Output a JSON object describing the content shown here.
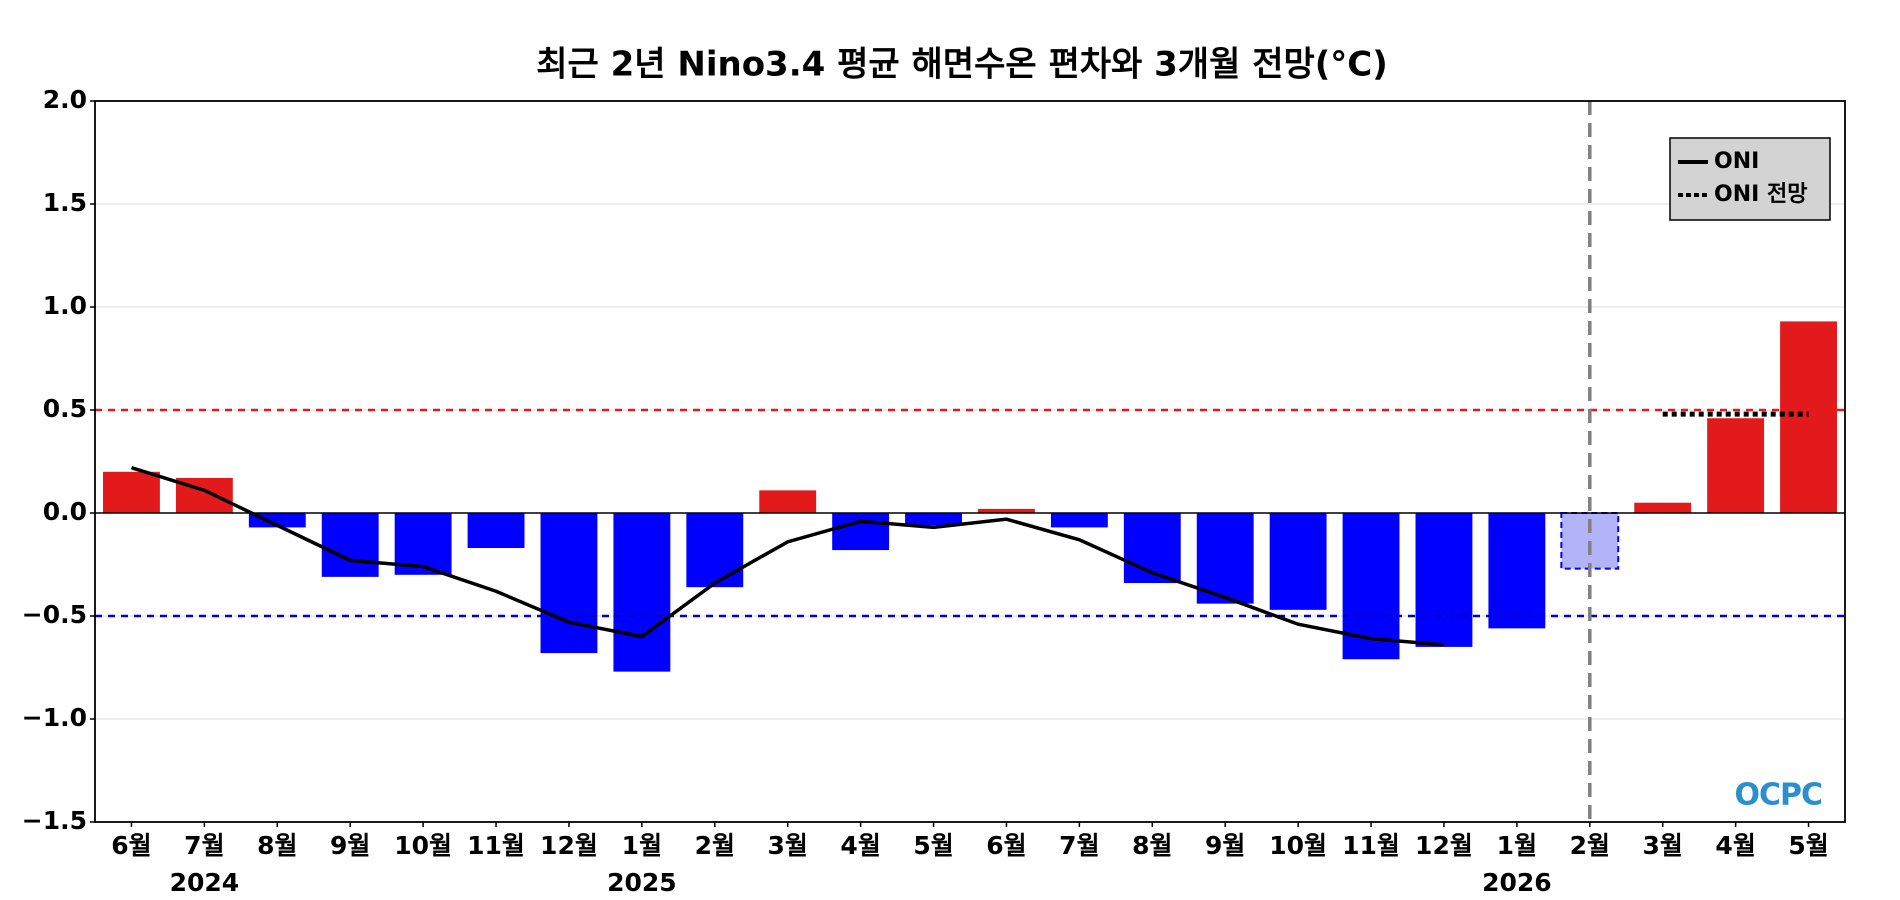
{
  "chart_data": {
    "type": "bar",
    "title": "최근 2년 Nino3.4 평균 해면수온 편차와 3개월 전망(°C)",
    "categories": [
      "6월",
      "7월",
      "8월",
      "9월",
      "10월",
      "11월",
      "12월",
      "1월",
      "2월",
      "3월",
      "4월",
      "5월",
      "6월",
      "7월",
      "8월",
      "9월",
      "10월",
      "11월",
      "12월",
      "1월",
      "2월",
      "3월",
      "4월",
      "5월"
    ],
    "year_labels": [
      {
        "index": 1,
        "label": "2024"
      },
      {
        "index": 7,
        "label": "2025"
      },
      {
        "index": 19,
        "label": "2026"
      }
    ],
    "values": [
      0.2,
      0.17,
      -0.07,
      -0.31,
      -0.3,
      -0.17,
      -0.68,
      -0.77,
      -0.36,
      0.11,
      -0.18,
      -0.06,
      0.02,
      -0.07,
      -0.34,
      -0.44,
      -0.47,
      -0.71,
      -0.65,
      -0.56,
      -0.27,
      0.05,
      0.46,
      0.93
    ],
    "colors": [
      "#e31a1c",
      "#e31a1c",
      "#0000ff",
      "#0000ff",
      "#0000ff",
      "#0000ff",
      "#0000ff",
      "#0000ff",
      "#0000ff",
      "#e31a1c",
      "#0000ff",
      "#0000ff",
      "#e31a1c",
      "#0000ff",
      "#0000ff",
      "#0000ff",
      "#0000ff",
      "#0000ff",
      "#0000ff",
      "#0000ff",
      "#b3b3f7",
      "#e31a1c",
      "#e31a1c",
      "#e31a1c"
    ],
    "edgecolors": [
      null,
      null,
      null,
      null,
      null,
      null,
      null,
      null,
      null,
      null,
      null,
      null,
      null,
      null,
      null,
      null,
      null,
      null,
      null,
      null,
      "#0000ff",
      null,
      null,
      null
    ],
    "series": [
      {
        "name": "ONI",
        "color": "#000000",
        "style": "solid",
        "values": [
          0.22,
          0.11,
          -0.06,
          -0.23,
          -0.26,
          -0.38,
          -0.53,
          -0.6,
          -0.34,
          -0.14,
          -0.04,
          -0.07,
          -0.03,
          -0.13,
          -0.29,
          -0.41,
          -0.54,
          -0.61,
          -0.64,
          null,
          null,
          null,
          null,
          null
        ]
      },
      {
        "name": "ONI 전망",
        "color": "#000000",
        "style": "dotted",
        "values": [
          null,
          null,
          null,
          null,
          null,
          null,
          null,
          null,
          null,
          null,
          null,
          null,
          null,
          null,
          null,
          null,
          null,
          null,
          null,
          null,
          null,
          0.48,
          0.48,
          0.48
        ]
      }
    ],
    "thresholds": [
      {
        "value": 0.5,
        "color": "#e31a1c"
      },
      {
        "value": -0.5,
        "color": "#0000cc"
      }
    ],
    "vline_index": 20,
    "ylim": [
      -1.5,
      2.0
    ],
    "yticks": [
      {
        "value": -1.5,
        "label": "−1.5"
      },
      {
        "value": -1.0,
        "label": "−1.0"
      },
      {
        "value": -0.5,
        "label": "−0.5"
      },
      {
        "value": 0,
        "label": "0.0"
      },
      0.5,
      {
        "value": 1.0,
        "label": "1.0"
      },
      1.5,
      {
        "value": 2.0,
        "label": "2.0"
      }
    ],
    "grid": true,
    "legend": "upper right",
    "logo": "OCPC"
  }
}
